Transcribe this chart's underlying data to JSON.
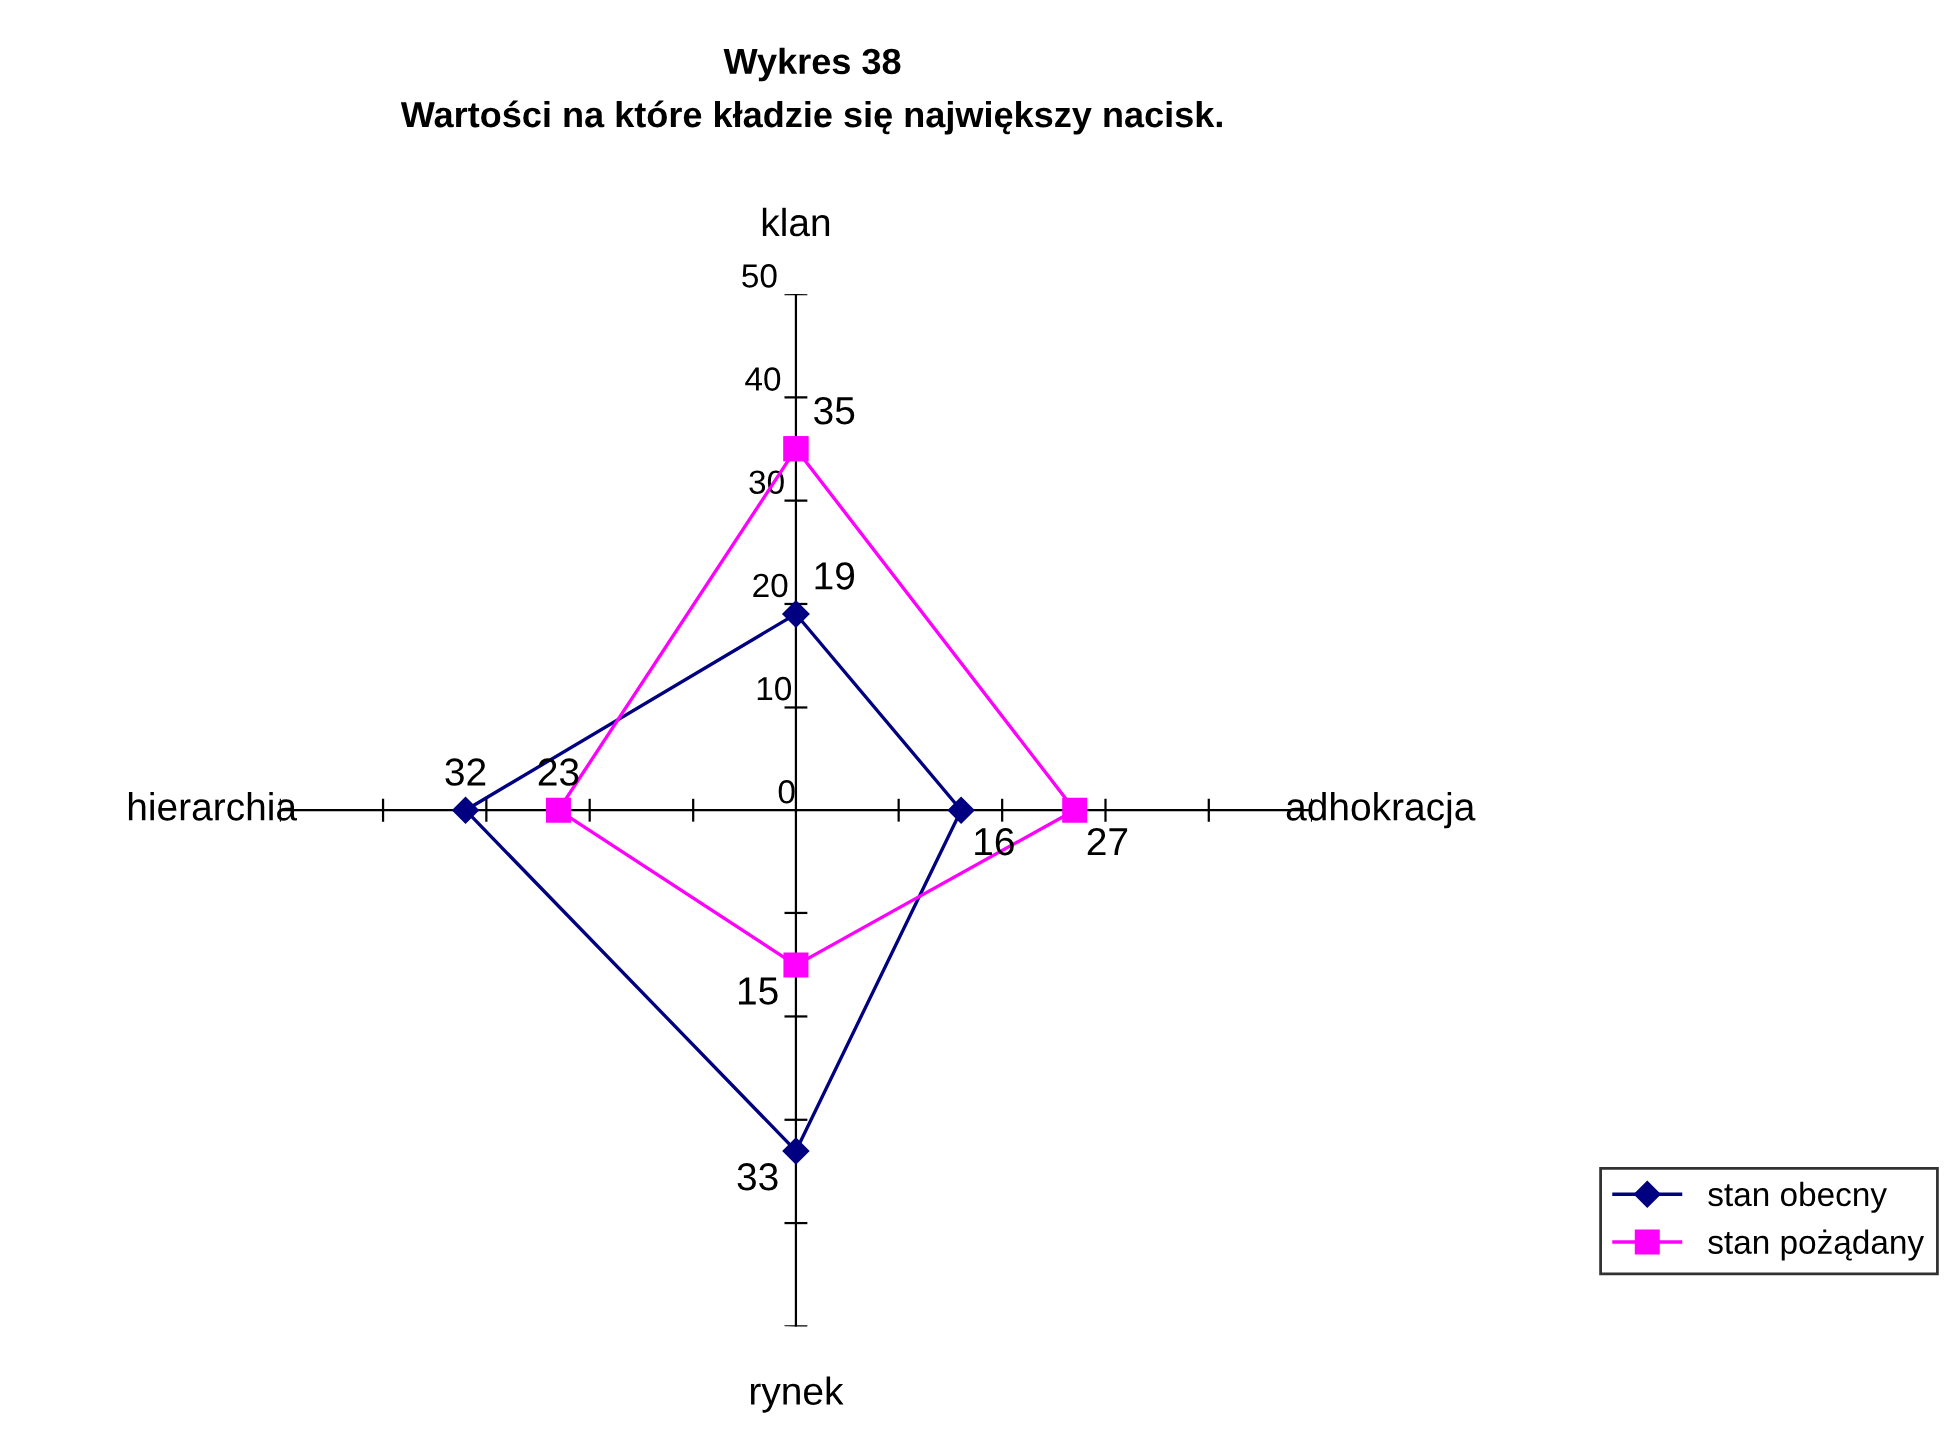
{
  "chart_data": {
    "type": "radar",
    "title": "Wykres 38",
    "subtitle": "Wartości na które kładzie się największy nacisk.",
    "categories": [
      "klan",
      "adhokracja",
      "rynek",
      "hierarchia"
    ],
    "series": [
      {
        "name": "stan obecny",
        "color": "#000080",
        "marker": "diamond",
        "values": [
          19,
          16,
          33,
          32
        ]
      },
      {
        "name": "stan pożądany",
        "color": "#ff00ff",
        "marker": "square",
        "values": [
          35,
          27,
          15,
          23
        ]
      }
    ],
    "ylim": [
      0,
      50
    ],
    "yticks": [
      0,
      10,
      20,
      30,
      40,
      50
    ],
    "data_labels": true,
    "legend": "bottom right",
    "grid": false
  }
}
